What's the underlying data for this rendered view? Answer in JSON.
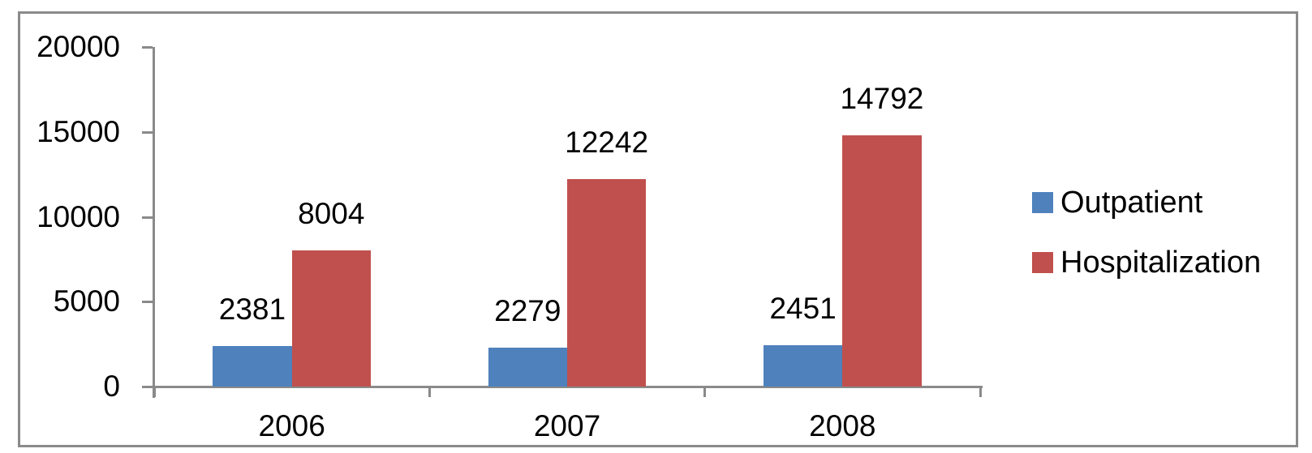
{
  "chart_data": {
    "type": "bar",
    "title": "",
    "xlabel": "",
    "ylabel": "",
    "categories": [
      "2006",
      "2007",
      "2008"
    ],
    "series": [
      {
        "name": "Outpatient",
        "color": "#4F81BD",
        "values": [
          2381,
          2279,
          2451
        ]
      },
      {
        "name": "Hospitalization",
        "color": "#C0504D",
        "values": [
          8004,
          12242,
          14792
        ]
      }
    ],
    "data_labels_shown": true,
    "ylim": [
      0,
      20000
    ],
    "ytick_interval": 5000,
    "ytick_labels": [
      "0",
      "5000",
      "10000",
      "15000",
      "20000"
    ],
    "grid": false,
    "legend_position": "right"
  },
  "style": {
    "axis_color": "#8A8A8A",
    "border_color": "#8A8A8A",
    "text_color": "#000000",
    "background": "#FFFFFF"
  }
}
